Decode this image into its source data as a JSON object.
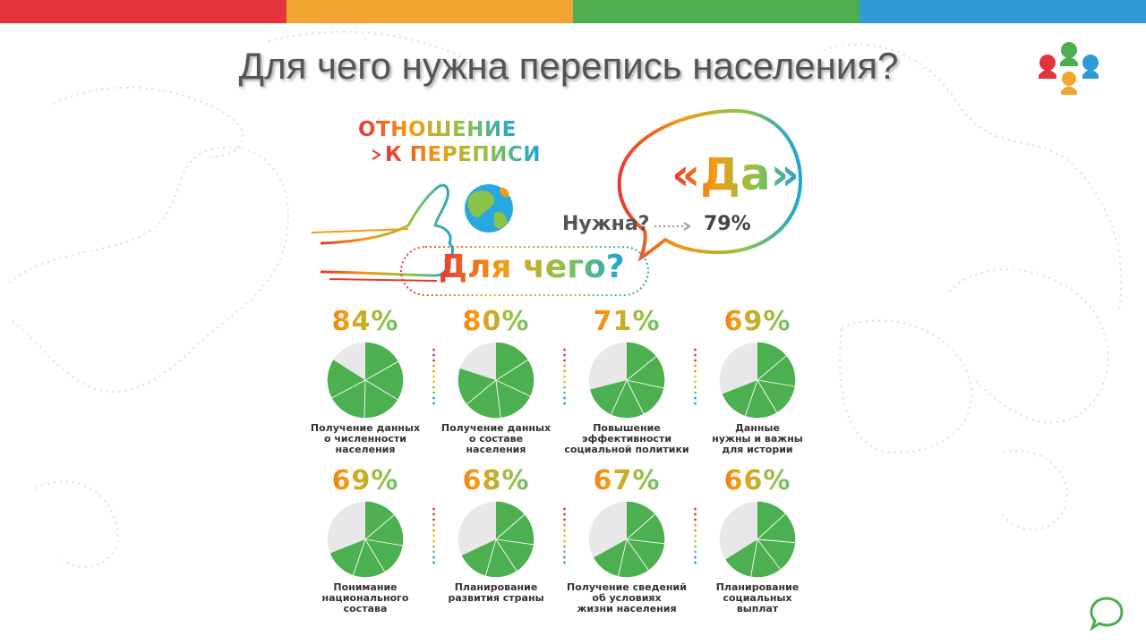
{
  "slide": {
    "title": "Для чего нужна перепись населения?",
    "topbar_colors": [
      "#e3343c",
      "#f2a533",
      "#4cae4f",
      "#2e9bd6"
    ]
  },
  "icons": {
    "logo": "census-logo-speech-bubbles",
    "globe": "globe-icon",
    "hand": "thumbs-up-hand-icon",
    "chat": "chat-bubble-icon"
  },
  "infographic": {
    "heading_line1": "ОТНОШЕНИЕ",
    "heading_line2": "К ПЕРЕПИСИ",
    "answer": "«Да»",
    "question": "Нужна?",
    "question_value": "79%",
    "purpose_question": "Для чего?"
  },
  "chart_data": {
    "type": "pie",
    "colors": {
      "share": "#4caf50",
      "rest": "#e8e8e8"
    },
    "items": [
      {
        "value_label": "84%",
        "value": 84,
        "caption_lines": [
          "Получение данных",
          "о численности",
          "населения"
        ]
      },
      {
        "value_label": "80%",
        "value": 80,
        "caption_lines": [
          "Получение данных",
          "о составе",
          "населения"
        ]
      },
      {
        "value_label": "71%",
        "value": 71,
        "caption_lines": [
          "Повышение",
          "эффективности",
          "социальной политики"
        ]
      },
      {
        "value_label": "69%",
        "value": 69,
        "caption_lines": [
          "Данные",
          "нужны и важны",
          "для истории"
        ]
      },
      {
        "value_label": "69%",
        "value": 69,
        "caption_lines": [
          "Понимание",
          "национального",
          "состава"
        ]
      },
      {
        "value_label": "68%",
        "value": 68,
        "caption_lines": [
          "Планирование",
          "развития страны"
        ]
      },
      {
        "value_label": "67%",
        "value": 67,
        "caption_lines": [
          "Получение сведений",
          "об условиях",
          "жизни населения"
        ]
      },
      {
        "value_label": "66%",
        "value": 66,
        "caption_lines": [
          "Планирование",
          "социальных",
          "выплат"
        ]
      }
    ]
  }
}
